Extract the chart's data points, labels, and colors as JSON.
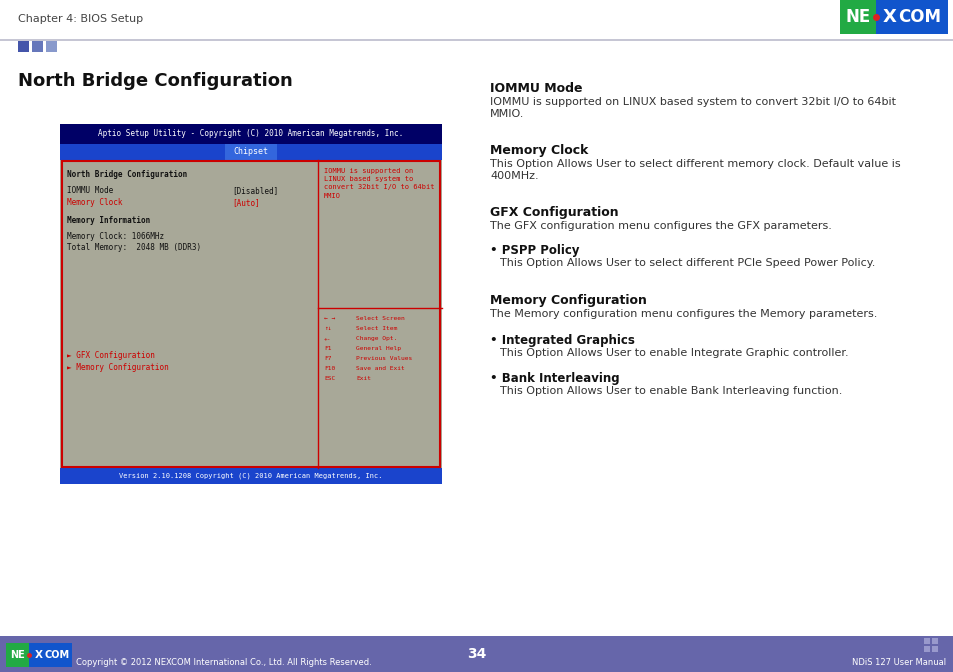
{
  "page_title": "Chapter 4: BIOS Setup",
  "page_number": "34",
  "manual_name": "NDiS 127 User Manual",
  "copyright": "Copyright © 2012 NEXCOM International Co., Ltd. All Rights Reserved.",
  "section_title": "North Bridge Configuration",
  "bios_title": "Aptio Setup Utility - Copyright (C) 2010 American Megatrends, Inc.",
  "bios_tab": "Chipset",
  "bios_menu_title": "North Bridge Configuration",
  "bios_items": [
    {
      "label": "IOMMU Mode",
      "value": "[Disabled]",
      "color": "#222222"
    },
    {
      "label": "Memory Clock",
      "value": "[Auto]",
      "color": "#cc0000"
    }
  ],
  "bios_section": "Memory Information",
  "bios_mem_lines": [
    "Memory Clock: 1066MHz",
    "Total Memory:  2048 MB (DDR3)"
  ],
  "bios_links": [
    {
      "label": "► GFX Configuration",
      "color": "#cc0000"
    },
    {
      "label": "► Memory Configuration",
      "color": "#cc0000"
    }
  ],
  "bios_help_text": "IOMMU is supported on\nLINUX based system to\nconvert 32bit I/O to 64bit\nMMIO",
  "bios_version": "Version 2.10.1208 Copyright (C) 2010 American Megatrends, Inc.",
  "right_sections": [
    {
      "heading": "IOMMU Mode",
      "body": "IOMMU is supported on LINUX based system to convert 32bit I/O to 64bit\nMMIO."
    },
    {
      "heading": "Memory Clock",
      "body": "This Option Allows User to select different memory clock. Default value is\n400MHz."
    },
    {
      "heading": "GFX Configuration",
      "body": "The GFX configuration menu configures the GFX parameters."
    },
    {
      "bullet": "PSPP Policy",
      "bullet_body": "This Option Allows User to select different PCIe Speed Power Policy."
    },
    {
      "heading": "Memory Configuration",
      "body": "The Memory configuration menu configures the Memory parameters."
    },
    {
      "bullet": "Integrated Graphics",
      "bullet_body": "This Option Allows User to enable Integrate Graphic controller."
    },
    {
      "bullet": "Bank Interleaving",
      "bullet_body": "This Option Allows User to enable Bank Interleaving function."
    }
  ],
  "bios_bg_color": "#a8a898",
  "bios_navy": "#000066",
  "bios_blue": "#1a44cc",
  "bios_tab_blue": "#3366dd",
  "bios_red": "#cc0000",
  "footer_bg": "#6666aa",
  "header_sq_colors": [
    "#4455aa",
    "#6677bb",
    "#8899cc"
  ],
  "logo_bg": "#1155aa",
  "logo_green_bg": "#22aa44",
  "nav_items": [
    [
      "← →",
      "Select Screen"
    ],
    [
      "↑↓",
      "Select Item"
    ],
    [
      "+-",
      "Change Opt."
    ],
    [
      "F1",
      "General Help"
    ],
    [
      "F7",
      "Previous Values"
    ],
    [
      "F10",
      "Save and Exit"
    ],
    [
      "ESC",
      "Exit"
    ]
  ]
}
